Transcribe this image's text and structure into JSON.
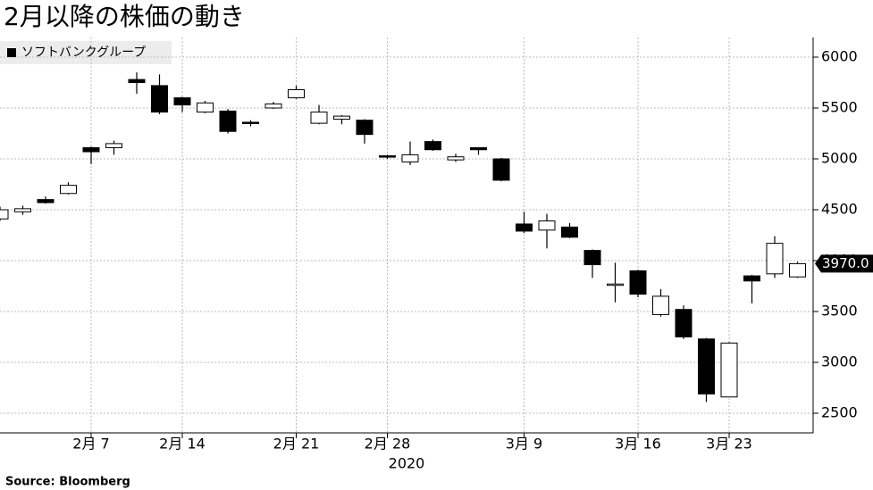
{
  "chart_data": {
    "type": "candlestick",
    "title": "2月以降の株価の動き",
    "source": "Source:  Bloomberg",
    "x_label": "2020",
    "categories": [
      null,
      null,
      null,
      null,
      "2月 7",
      null,
      null,
      null,
      "2月 14",
      null,
      null,
      null,
      null,
      "2月 21",
      null,
      null,
      null,
      "2月 28",
      null,
      null,
      null,
      null,
      null,
      "3月  9",
      null,
      null,
      null,
      null,
      "3月 16",
      null,
      null,
      null,
      "3月 23",
      null,
      null,
      null
    ],
    "series": [
      {
        "name": "ソフトバンクグループ",
        "up_color": "#ffffff",
        "down_color": "#000000",
        "open": [
          4410,
          4480,
          4600,
          4660,
          5110,
          5110,
          5780,
          5720,
          5600,
          5460,
          5470,
          5360,
          5500,
          5600,
          5350,
          5390,
          5380,
          5030,
          4970,
          5170,
          4990,
          5110,
          5000,
          4360,
          4300,
          4330,
          4100,
          3760,
          3900,
          3470,
          3520,
          3230,
          2660,
          3850,
          3870,
          3840
        ],
        "high": [
          4530,
          4540,
          4630,
          4770,
          5120,
          5180,
          5850,
          5830,
          5610,
          5570,
          5490,
          5380,
          5560,
          5720,
          5530,
          5430,
          5390,
          5040,
          5170,
          5190,
          5050,
          5110,
          5010,
          4480,
          4460,
          4370,
          4110,
          3980,
          3910,
          3720,
          3560,
          3240,
          3200,
          3860,
          4240,
          3990
        ],
        "low": [
          4390,
          4450,
          4560,
          4650,
          4950,
          5040,
          5640,
          5440,
          5460,
          5450,
          5250,
          5320,
          5490,
          5590,
          5340,
          5340,
          5150,
          5000,
          4940,
          5080,
          4970,
          5040,
          4780,
          4270,
          4120,
          4220,
          3830,
          3590,
          3640,
          3450,
          3230,
          2610,
          2660,
          3580,
          3830,
          3830
        ],
        "close": [
          4500,
          4510,
          4570,
          4740,
          5070,
          5150,
          5750,
          5460,
          5530,
          5550,
          5270,
          5350,
          5540,
          5680,
          5460,
          5420,
          5240,
          5020,
          5040,
          5090,
          5020,
          5090,
          4790,
          4290,
          4390,
          4230,
          3960,
          3770,
          3670,
          3650,
          3250,
          2690,
          3190,
          3800,
          4170,
          3970
        ],
        "close_labels": [
          null,
          null,
          null,
          null,
          null,
          null,
          null,
          null,
          null,
          null,
          null,
          null,
          null,
          null,
          null,
          null,
          null,
          null,
          null,
          null,
          null,
          null,
          null,
          null,
          null,
          null,
          null,
          null,
          null,
          null,
          null,
          null,
          null,
          null,
          null,
          "3970.0"
        ]
      }
    ],
    "ylim": [
      2307,
      6193
    ],
    "yticks": [
      2500,
      3000,
      3500,
      4000,
      4500,
      5000,
      5500,
      6000
    ],
    "grid": true
  }
}
